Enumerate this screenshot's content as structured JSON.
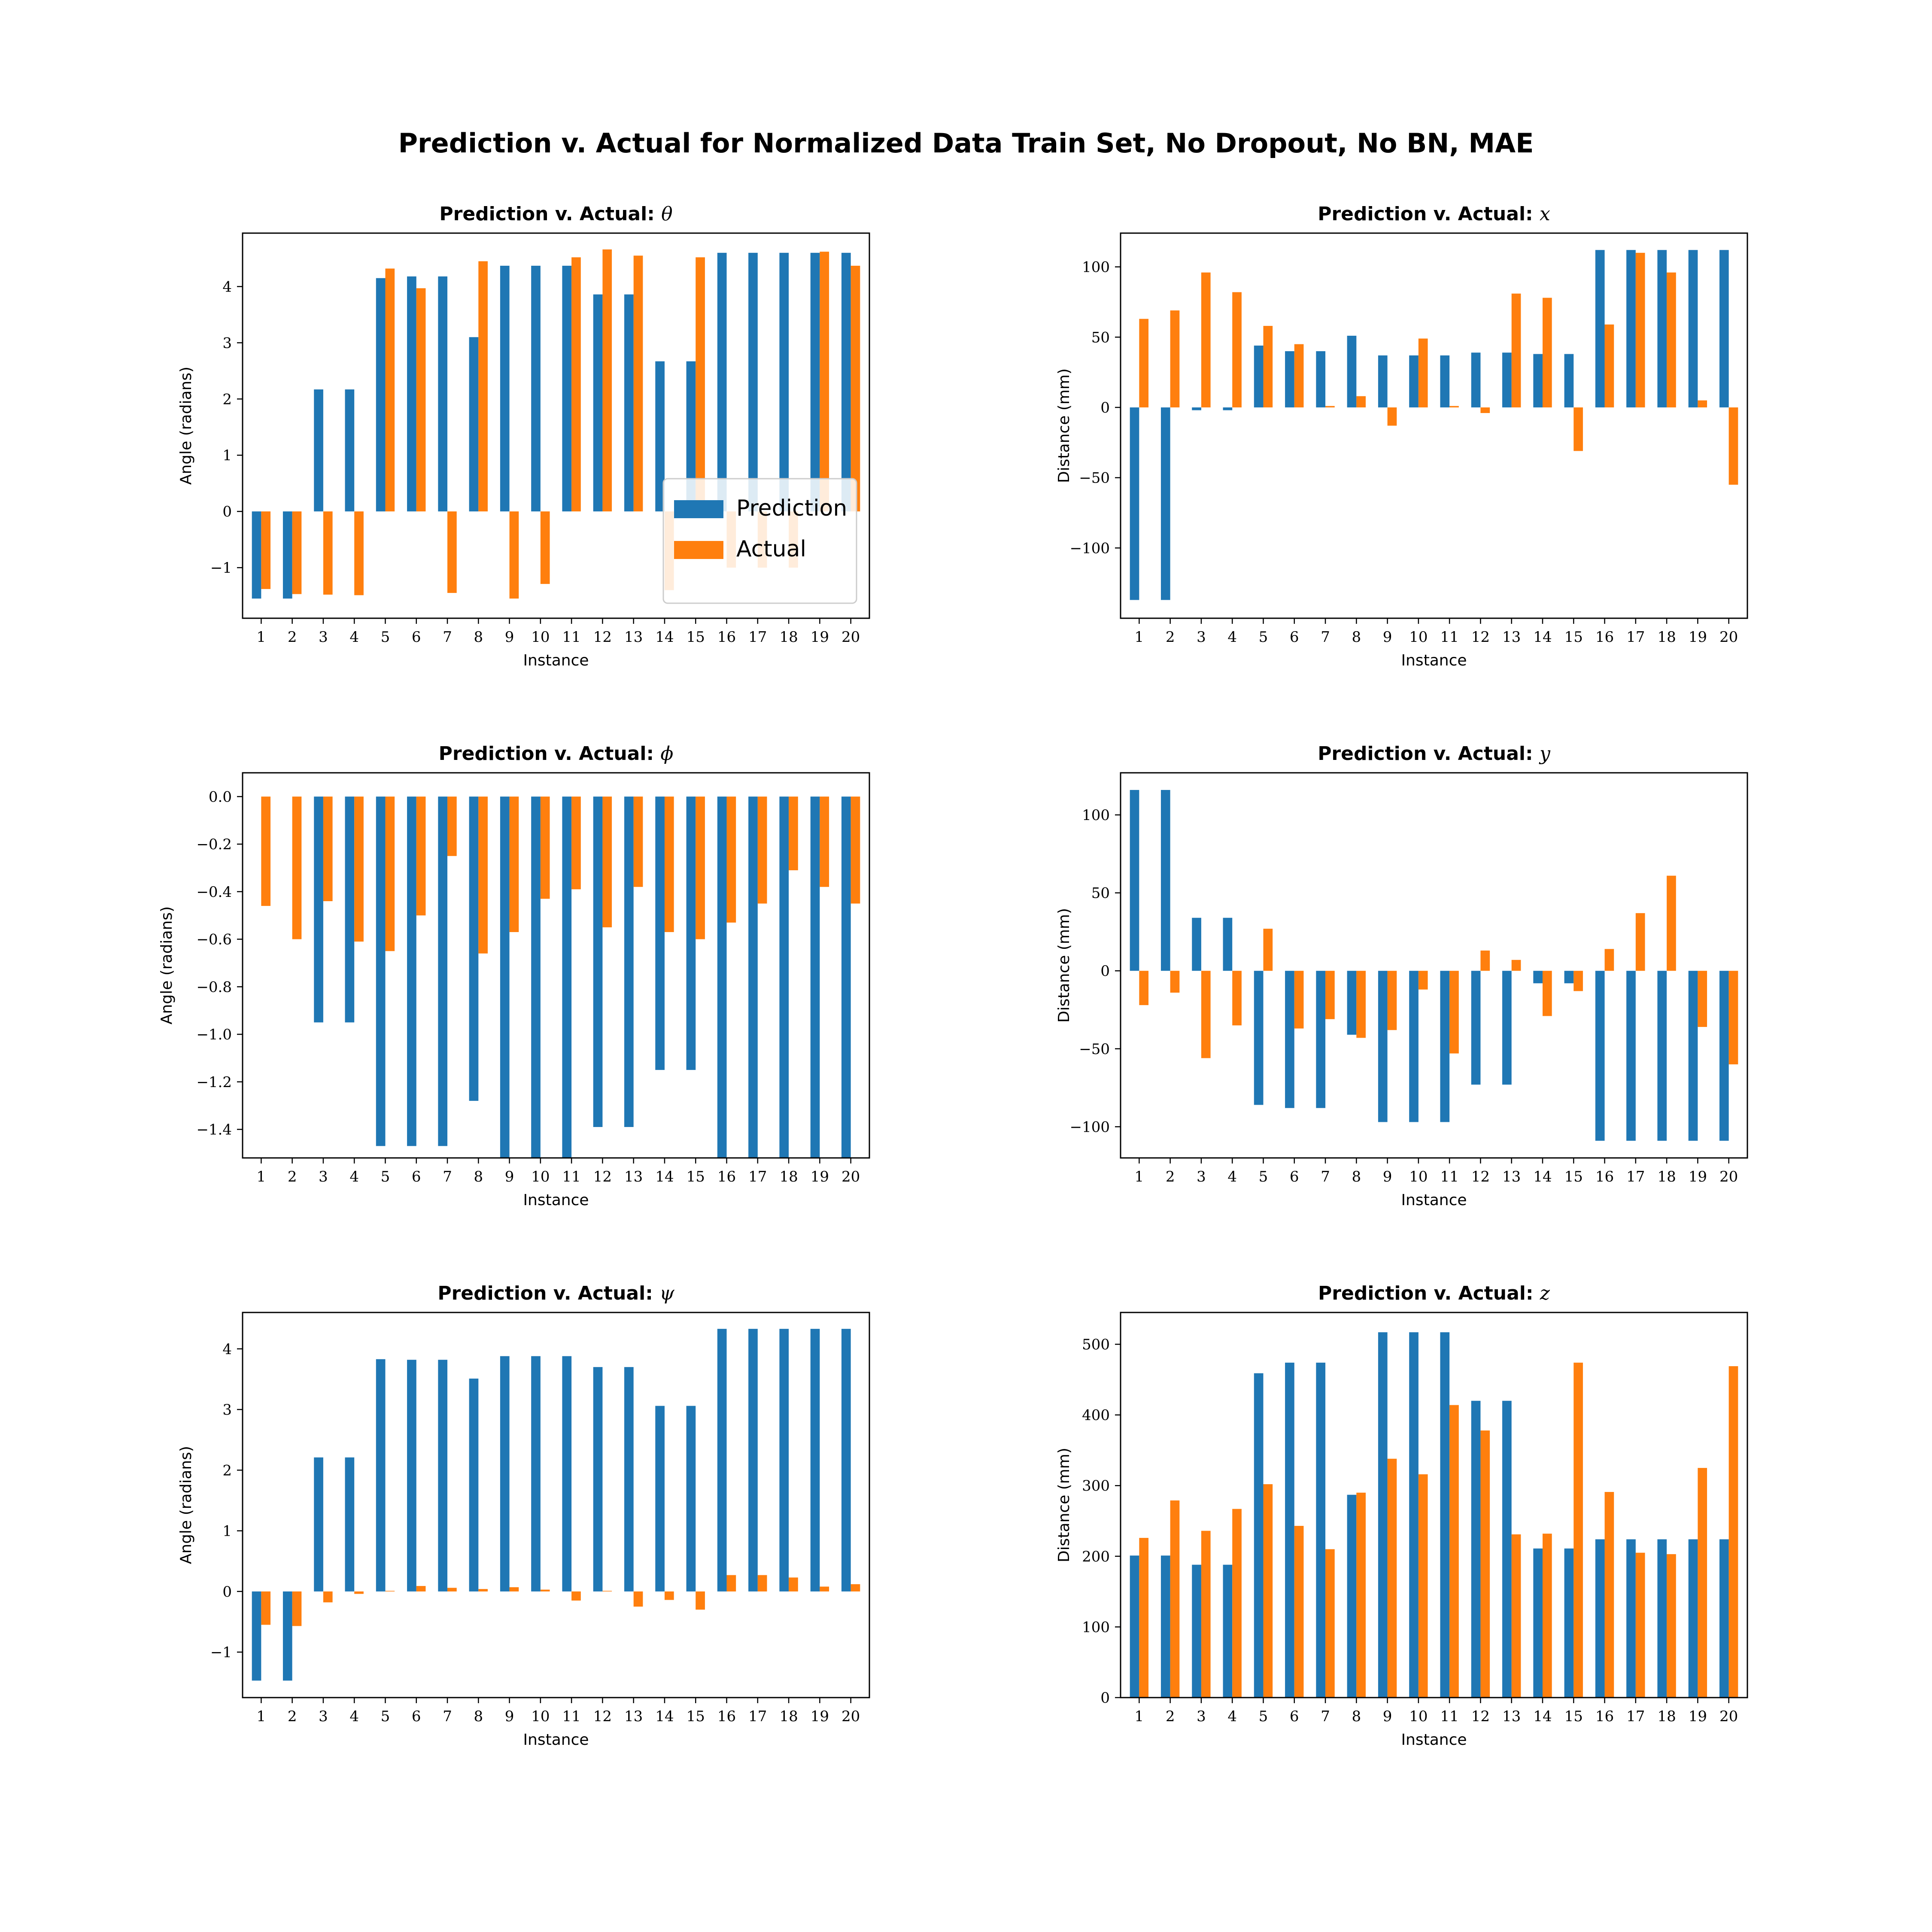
{
  "figure_title": "Prediction v. Actual for Normalized Data Train Set, No Dropout, No BN, MAE",
  "colors": {
    "prediction": "#1f77b4",
    "actual": "#ff7f0e"
  },
  "chart_data": [
    {
      "type": "bar",
      "title_prefix": "Prediction v. Actual: ",
      "title_symbol": "θ",
      "xlabel": "Instance",
      "ylabel": "Angle (radians)",
      "categories": [
        "1",
        "2",
        "3",
        "4",
        "5",
        "6",
        "7",
        "8",
        "9",
        "10",
        "11",
        "12",
        "13",
        "14",
        "15",
        "16",
        "17",
        "18",
        "19",
        "20"
      ],
      "ylim": [
        -1.9,
        4.95
      ],
      "yticks": [
        -1,
        0,
        1,
        2,
        3,
        4
      ],
      "ytick_labels": [
        "−1",
        "0",
        "1",
        "2",
        "3",
        "4"
      ],
      "legend": "lower-right",
      "series": [
        {
          "name": "Prediction",
          "values": [
            -1.55,
            -1.55,
            2.17,
            2.17,
            4.15,
            4.18,
            4.18,
            3.1,
            4.37,
            4.37,
            4.37,
            3.86,
            3.86,
            2.67,
            2.67,
            4.6,
            4.6,
            4.6,
            4.6,
            4.6
          ]
        },
        {
          "name": "Actual",
          "values": [
            -1.38,
            -1.47,
            -1.48,
            -1.49,
            4.32,
            3.97,
            -1.45,
            4.45,
            -1.55,
            -1.29,
            4.52,
            4.66,
            4.55,
            -1.4,
            4.52,
            -1.0,
            -1.0,
            -1.0,
            4.62,
            4.37
          ]
        }
      ]
    },
    {
      "type": "bar",
      "title_prefix": "Prediction v. Actual: ",
      "title_symbol": "x",
      "xlabel": "Instance",
      "ylabel": "Distance (mm)",
      "categories": [
        "1",
        "2",
        "3",
        "4",
        "5",
        "6",
        "7",
        "8",
        "9",
        "10",
        "11",
        "12",
        "13",
        "14",
        "15",
        "16",
        "17",
        "18",
        "19",
        "20"
      ],
      "ylim": [
        -150,
        124
      ],
      "yticks": [
        -100,
        -50,
        0,
        50,
        100
      ],
      "ytick_labels": [
        "−100",
        "−50",
        "0",
        "50",
        "100"
      ],
      "series": [
        {
          "name": "Prediction",
          "values": [
            -137,
            -137,
            -2,
            -2,
            44,
            40,
            40,
            51,
            37,
            37,
            37,
            39,
            39,
            38,
            38,
            112,
            112,
            112,
            112,
            112
          ]
        },
        {
          "name": "Actual",
          "values": [
            63,
            69,
            96,
            82,
            58,
            45,
            1,
            8,
            -13,
            49,
            1,
            -4,
            81,
            78,
            -31,
            59,
            110,
            96,
            5,
            -55
          ]
        }
      ]
    },
    {
      "type": "bar",
      "title_prefix": "Prediction v. Actual: ",
      "title_symbol": "ϕ",
      "xlabel": "Instance",
      "ylabel": "Angle (radians)",
      "categories": [
        "1",
        "2",
        "3",
        "4",
        "5",
        "6",
        "7",
        "8",
        "9",
        "10",
        "11",
        "12",
        "13",
        "14",
        "15",
        "16",
        "17",
        "18",
        "19",
        "20"
      ],
      "ylim": [
        -1.52,
        0.1
      ],
      "yticks": [
        -1.4,
        -1.2,
        -1.0,
        -0.8,
        -0.6,
        -0.4,
        -0.2,
        0.0
      ],
      "ytick_labels": [
        "−1.4",
        "−1.2",
        "−1.0",
        "−0.8",
        "−0.6",
        "−0.4",
        "−0.2",
        "0.0"
      ],
      "series": [
        {
          "name": "Prediction",
          "values": [
            0,
            0,
            -0.95,
            -0.95,
            -1.47,
            -1.47,
            -1.47,
            -1.28,
            -1.52,
            -1.52,
            -1.52,
            -1.39,
            -1.39,
            -1.15,
            -1.15,
            -1.52,
            -1.52,
            -1.52,
            -1.52,
            -1.52
          ]
        },
        {
          "name": "Actual",
          "values": [
            -0.46,
            -0.6,
            -0.44,
            -0.61,
            -0.65,
            -0.5,
            -0.25,
            -0.66,
            -0.57,
            -0.43,
            -0.39,
            -0.55,
            -0.38,
            -0.57,
            -0.6,
            -0.53,
            -0.45,
            -0.31,
            -0.38,
            -0.45
          ]
        }
      ]
    },
    {
      "type": "bar",
      "title_prefix": "Prediction v. Actual: ",
      "title_symbol": "y",
      "xlabel": "Instance",
      "ylabel": "Distance (mm)",
      "categories": [
        "1",
        "2",
        "3",
        "4",
        "5",
        "6",
        "7",
        "8",
        "9",
        "10",
        "11",
        "12",
        "13",
        "14",
        "15",
        "16",
        "17",
        "18",
        "19",
        "20"
      ],
      "ylim": [
        -120,
        127
      ],
      "yticks": [
        -100,
        -50,
        0,
        50,
        100
      ],
      "ytick_labels": [
        "−100",
        "−50",
        "0",
        "50",
        "100"
      ],
      "series": [
        {
          "name": "Prediction",
          "values": [
            116,
            116,
            34,
            34,
            -86,
            -88,
            -88,
            -41,
            -97,
            -97,
            -97,
            -73,
            -73,
            -8,
            -8,
            -109,
            -109,
            -109,
            -109,
            -109
          ]
        },
        {
          "name": "Actual",
          "values": [
            -22,
            -14,
            -56,
            -35,
            27,
            -37,
            -31,
            -43,
            -38,
            -12,
            -53,
            13,
            7,
            -29,
            -13,
            14,
            37,
            61,
            -36,
            -60
          ]
        }
      ]
    },
    {
      "type": "bar",
      "title_prefix": "Prediction v. Actual: ",
      "title_symbol": "ψ",
      "xlabel": "Instance",
      "ylabel": "Angle (radians)",
      "categories": [
        "1",
        "2",
        "3",
        "4",
        "5",
        "6",
        "7",
        "8",
        "9",
        "10",
        "11",
        "12",
        "13",
        "14",
        "15",
        "16",
        "17",
        "18",
        "19",
        "20"
      ],
      "ylim": [
        -1.75,
        4.6
      ],
      "yticks": [
        -1,
        0,
        1,
        2,
        3,
        4
      ],
      "ytick_labels": [
        "−1",
        "0",
        "1",
        "2",
        "3",
        "4"
      ],
      "series": [
        {
          "name": "Prediction",
          "values": [
            -1.47,
            -1.47,
            2.21,
            2.21,
            3.83,
            3.82,
            3.82,
            3.51,
            3.88,
            3.88,
            3.88,
            3.7,
            3.7,
            3.06,
            3.06,
            4.33,
            4.33,
            4.33,
            4.33,
            4.33
          ]
        },
        {
          "name": "Actual",
          "values": [
            -0.55,
            -0.57,
            -0.18,
            -0.04,
            0.01,
            0.09,
            0.06,
            0.04,
            0.07,
            0.03,
            -0.15,
            0.01,
            -0.25,
            -0.14,
            -0.3,
            0.27,
            0.27,
            0.23,
            0.08,
            0.12
          ]
        }
      ]
    },
    {
      "type": "bar",
      "title_prefix": "Prediction v. Actual: ",
      "title_symbol": "z",
      "xlabel": "Instance",
      "ylabel": "Distance (mm)",
      "categories": [
        "1",
        "2",
        "3",
        "4",
        "5",
        "6",
        "7",
        "8",
        "9",
        "10",
        "11",
        "12",
        "13",
        "14",
        "15",
        "16",
        "17",
        "18",
        "19",
        "20"
      ],
      "ylim": [
        0,
        545
      ],
      "yticks": [
        0,
        100,
        200,
        300,
        400,
        500
      ],
      "ytick_labels": [
        "0",
        "100",
        "200",
        "300",
        "400",
        "500"
      ],
      "series": [
        {
          "name": "Prediction",
          "values": [
            201,
            201,
            188,
            188,
            459,
            474,
            474,
            287,
            517,
            517,
            517,
            420,
            420,
            211,
            211,
            224,
            224,
            224,
            224,
            224
          ]
        },
        {
          "name": "Actual",
          "values": [
            226,
            279,
            236,
            267,
            302,
            243,
            210,
            290,
            338,
            316,
            414,
            378,
            231,
            232,
            474,
            291,
            205,
            203,
            325,
            469
          ]
        }
      ]
    }
  ]
}
